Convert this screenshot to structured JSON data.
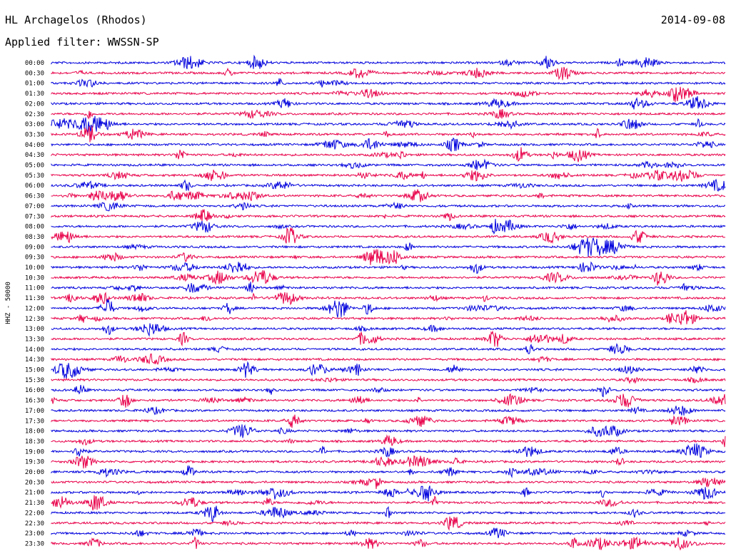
{
  "header": {
    "station": "HL Archagelos (Rhodos)",
    "date": "2014-09-08",
    "filter_label": "Applied filter:",
    "filter_name": "WWSSN-SP"
  },
  "channel_label": "HHZ - 50000",
  "colors": {
    "even_trace": "#0000dd",
    "odd_trace": "#e8004a"
  },
  "chart_data": {
    "type": "line",
    "title": "HL Archagelos (Rhodos)",
    "date": "2014-09-08",
    "filter": "WWSSN-SP",
    "ylabel": "HHZ - 50000",
    "row_interval_minutes": 30,
    "row_labels": [
      "00:00",
      "00:30",
      "01:00",
      "01:30",
      "02:00",
      "02:30",
      "03:00",
      "03:30",
      "04:00",
      "04:30",
      "05:00",
      "05:30",
      "06:00",
      "06:30",
      "07:00",
      "07:30",
      "08:00",
      "08:30",
      "09:00",
      "09:30",
      "10:00",
      "10:30",
      "11:00",
      "11:30",
      "12:00",
      "12:30",
      "13:00",
      "13:30",
      "14:00",
      "14:30",
      "15:00",
      "15:30",
      "16:00",
      "16:30",
      "17:00",
      "17:30",
      "18:00",
      "18:30",
      "19:00",
      "19:30",
      "20:00",
      "20:30",
      "21:00",
      "21:30",
      "22:00",
      "22:30",
      "23:00",
      "23:30"
    ],
    "grid": false,
    "legend": "none",
    "color_cycle": [
      "blue",
      "red"
    ]
  }
}
